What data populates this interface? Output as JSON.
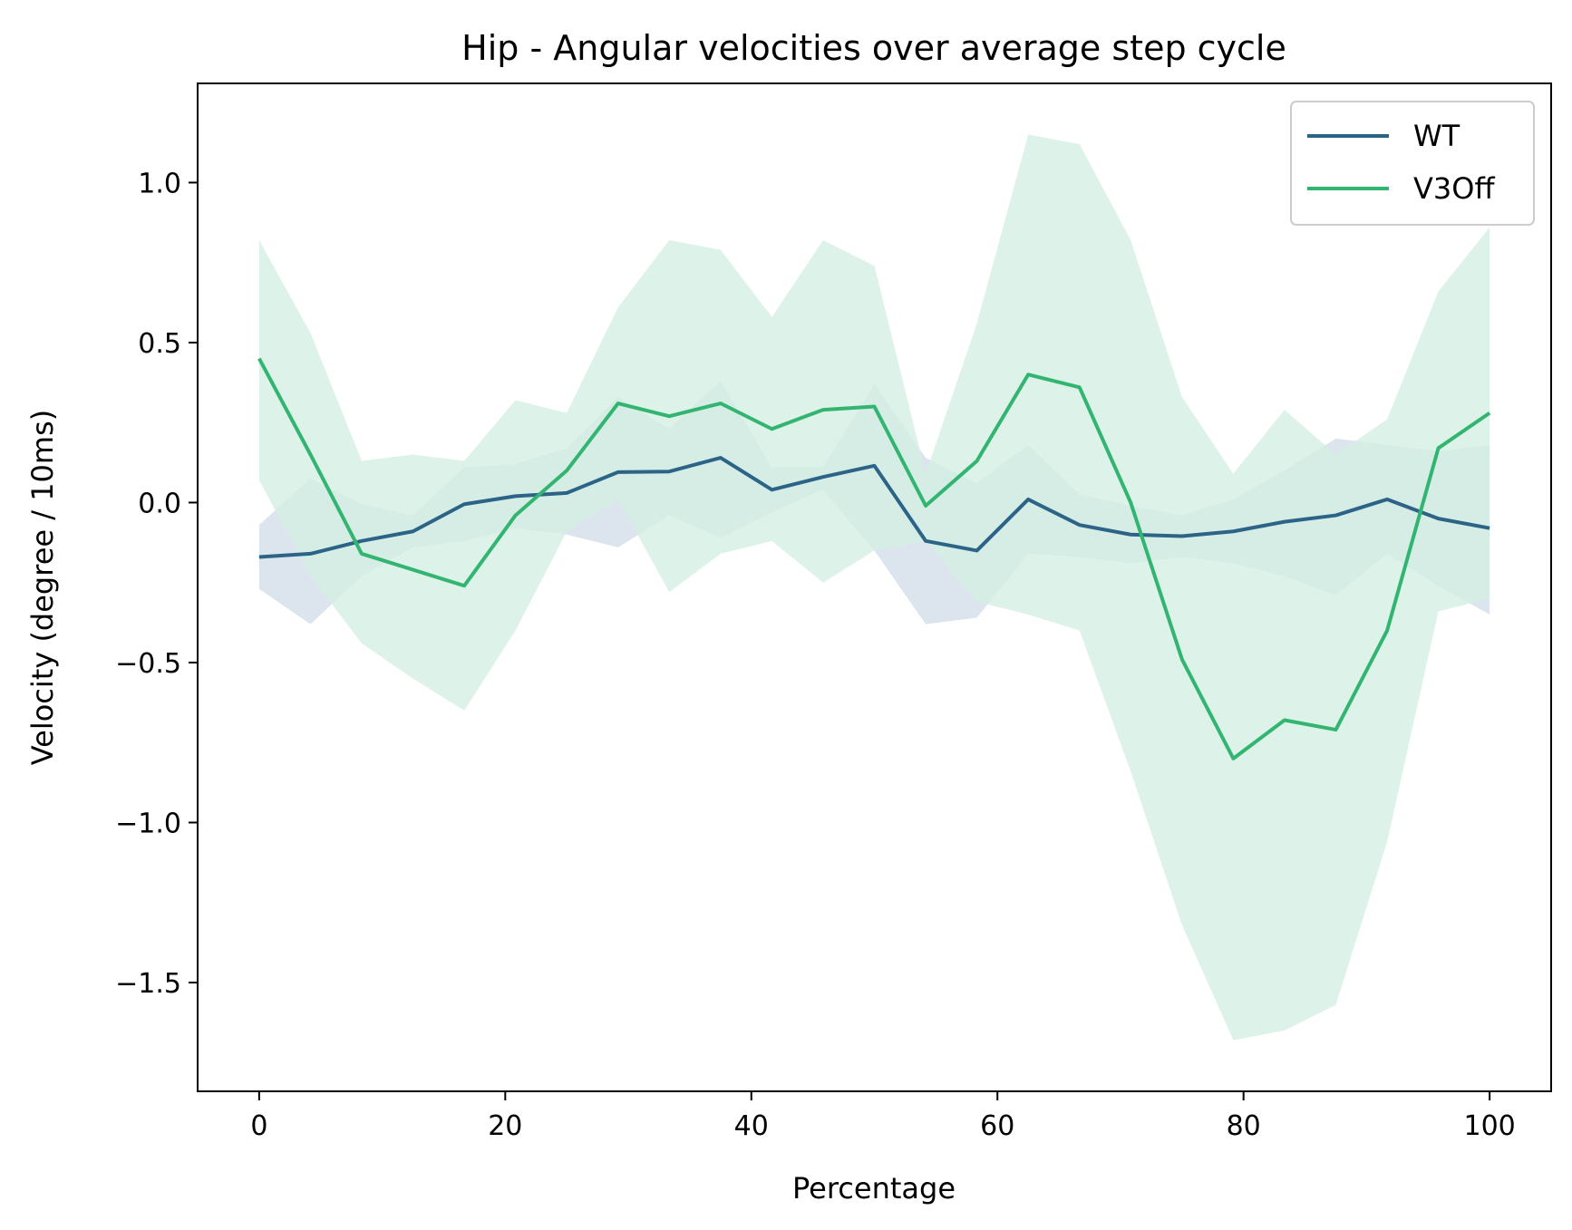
{
  "chart_data": {
    "type": "line",
    "title": "Hip  - Angular velocities over average step cycle",
    "xlabel": "Percentage",
    "ylabel": "Velocity (degree / 10ms)",
    "xlim": [
      -5,
      105
    ],
    "ylim": [
      -1.84,
      1.31
    ],
    "xticks": [
      0,
      20,
      40,
      60,
      80,
      100
    ],
    "xtick_labels": [
      "0",
      "20",
      "40",
      "60",
      "80",
      "100"
    ],
    "yticks": [
      1.0,
      0.5,
      0.0,
      -0.5,
      -1.0,
      -1.5
    ],
    "ytick_labels": [
      "1.0",
      "0.5",
      "0.0",
      "−0.5",
      "−1.0",
      "−1.5"
    ],
    "grid": false,
    "legend": "top-right",
    "x": [
      0,
      4.17,
      8.33,
      12.5,
      16.67,
      20.83,
      25,
      29.17,
      33.33,
      37.5,
      41.67,
      45.83,
      50,
      54.17,
      58.33,
      62.5,
      66.67,
      70.83,
      75,
      79.17,
      83.33,
      87.5,
      91.67,
      95.83,
      100
    ],
    "series": [
      {
        "name": "WT",
        "color": "#2c6488",
        "band_color": "#d3dde8",
        "values": [
          -0.17,
          -0.16,
          -0.12,
          -0.09,
          -0.005,
          0.02,
          0.03,
          0.095,
          0.097,
          0.14,
          0.04,
          0.08,
          0.115,
          -0.12,
          -0.15,
          0.01,
          -0.07,
          -0.1,
          -0.105,
          -0.09,
          -0.06,
          -0.04,
          0.01,
          -0.05,
          -0.08
        ],
        "upper": [
          -0.07,
          0.075,
          -0.005,
          -0.04,
          0.11,
          0.12,
          0.17,
          0.33,
          0.23,
          0.38,
          0.11,
          0.11,
          0.37,
          0.14,
          0.06,
          0.18,
          0.025,
          -0.01,
          -0.04,
          0.01,
          0.1,
          0.2,
          0.18,
          0.16,
          0.18
        ],
        "lower": [
          -0.27,
          -0.38,
          -0.23,
          -0.14,
          -0.12,
          -0.08,
          -0.1,
          -0.14,
          -0.04,
          -0.11,
          -0.03,
          0.04,
          -0.15,
          -0.38,
          -0.36,
          -0.16,
          -0.17,
          -0.19,
          -0.17,
          -0.19,
          -0.23,
          -0.29,
          -0.16,
          -0.26,
          -0.35
        ]
      },
      {
        "name": "V3Off",
        "color": "#33b572",
        "band_color": "#d5efe2",
        "values": [
          0.45,
          0.15,
          -0.16,
          -0.21,
          -0.26,
          -0.04,
          0.1,
          0.31,
          0.27,
          0.31,
          0.23,
          0.29,
          0.3,
          -0.01,
          0.13,
          0.4,
          0.36,
          0.0,
          -0.49,
          -0.8,
          -0.68,
          -0.71,
          -0.4,
          0.17,
          0.28
        ],
        "upper": [
          0.82,
          0.53,
          0.13,
          0.15,
          0.13,
          0.32,
          0.28,
          0.61,
          0.82,
          0.79,
          0.58,
          0.82,
          0.74,
          0.09,
          0.56,
          1.15,
          1.12,
          0.82,
          0.33,
          0.09,
          0.29,
          0.15,
          0.26,
          0.66,
          0.86
        ],
        "lower": [
          0.07,
          -0.23,
          -0.44,
          -0.55,
          -0.65,
          -0.4,
          -0.09,
          0.01,
          -0.28,
          -0.16,
          -0.12,
          -0.25,
          -0.15,
          -0.12,
          -0.31,
          -0.35,
          -0.4,
          -0.84,
          -1.32,
          -1.68,
          -1.65,
          -1.57,
          -1.06,
          -0.34,
          -0.3
        ]
      }
    ]
  }
}
